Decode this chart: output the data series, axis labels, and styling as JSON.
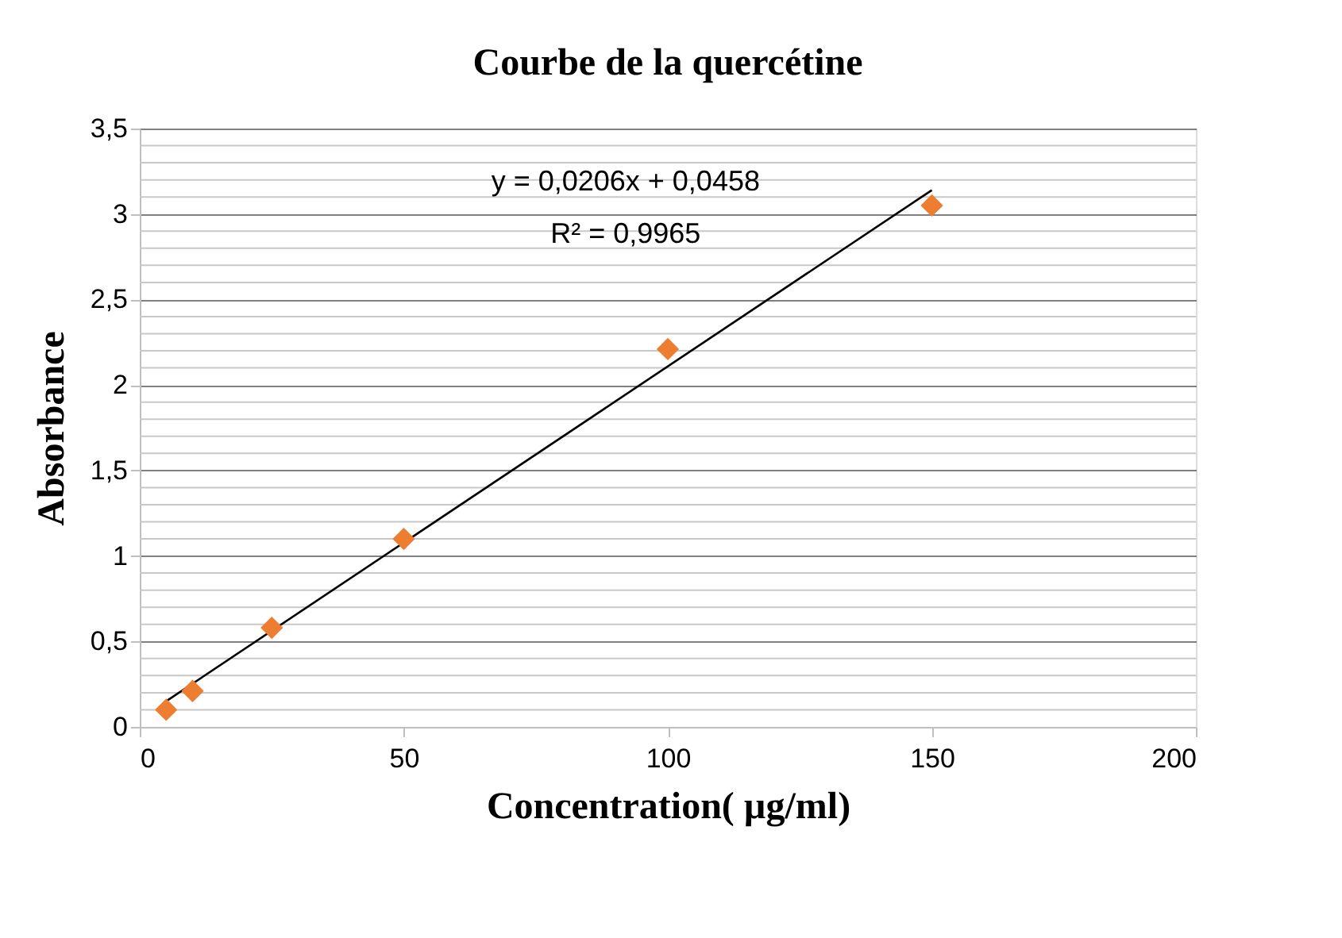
{
  "chart_data": {
    "type": "scatter",
    "title": "Courbe de la quercétine",
    "xlabel": "Concentration( µg/ml)",
    "ylabel": "Absorbance",
    "x": [
      5,
      10,
      25,
      50,
      100,
      150
    ],
    "series": [
      {
        "color": "#ed7d31",
        "values": [
          0.1,
          0.21,
          0.58,
          1.1,
          2.21,
          3.05
        ],
        "marker": "diamond"
      },
      {
        "type": "line",
        "color": "#000000",
        "x": [
          5,
          150
        ],
        "values": [
          0.15,
          3.14
        ]
      }
    ],
    "xlim": [
      0,
      200
    ],
    "xticks": [
      0,
      50,
      100,
      150,
      200
    ],
    "ylim": [
      0,
      3.5
    ],
    "yticks": [
      0,
      {
        "value": 0.1,
        "label": null
      },
      {
        "value": 0.2,
        "label": null
      },
      {
        "value": 0.3,
        "label": null
      },
      {
        "value": 0.4,
        "label": null
      },
      {
        "value": 0.5,
        "label": "0,5"
      },
      {
        "value": 0.6,
        "label": null
      },
      {
        "value": 0.7,
        "label": null
      },
      {
        "value": 0.8,
        "label": null
      },
      {
        "value": 0.9,
        "label": null
      },
      1,
      {
        "value": 1.1,
        "label": null
      },
      {
        "value": 1.2,
        "label": null
      },
      {
        "value": 1.3,
        "label": null
      },
      {
        "value": 1.4,
        "label": null
      },
      {
        "value": 1.5,
        "label": "1,5"
      },
      {
        "value": 1.6,
        "label": null
      },
      {
        "value": 1.7,
        "label": null
      },
      {
        "value": 1.8,
        "label": null
      },
      {
        "value": 1.9,
        "label": null
      },
      2,
      {
        "value": 2.1,
        "label": null
      },
      {
        "value": 2.2,
        "label": null
      },
      {
        "value": 2.3,
        "label": null
      },
      {
        "value": 2.4,
        "label": null
      },
      {
        "value": 2.5,
        "label": "2,5"
      },
      {
        "value": 2.6,
        "label": null
      },
      {
        "value": 2.7,
        "label": null
      },
      {
        "value": 2.8,
        "label": null
      },
      {
        "value": 2.9,
        "label": null
      },
      3,
      {
        "value": 3.1,
        "label": null
      },
      {
        "value": 3.2,
        "label": null
      },
      {
        "value": 3.3,
        "label": null
      },
      {
        "value": 3.4,
        "label": null
      },
      {
        "value": 3.5,
        "label": "3,5"
      }
    ],
    "grid": "y",
    "annotations": [
      "y = 0,0206x + 0,0458",
      "R² = 0,9965"
    ]
  }
}
